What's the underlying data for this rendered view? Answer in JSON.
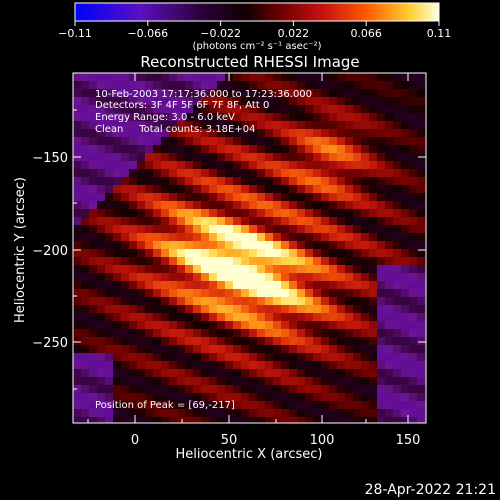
{
  "colorbar": {
    "ticks": [
      "−0.11",
      "−0.066",
      "−0.022",
      "0.022",
      "0.066",
      "0.11"
    ],
    "unit_text": "(photons cm⁻² s⁻¹ asec⁻²)",
    "colors": [
      "#0000ff",
      "#6a00a8",
      "#1a0010",
      "#4a0000",
      "#b01010",
      "#ff3c00",
      "#ff9a10",
      "#ffe040",
      "#ffffc8"
    ]
  },
  "title": "Reconstructed RHESSI Image",
  "info": {
    "line1": "10-Feb-2003 17:17:36.000 to 17:23:36.000",
    "line2": "Detectors: 3F 4F 5F 6F 7F 8F, Att 0",
    "line3": "Energy Range: 3.0 - 6.0 keV",
    "line4": "Clean     Total counts: 3.18E+04"
  },
  "peak_text": "Position of Peak = [69,-217]",
  "xaxis": {
    "label": "Heliocentric X (arcsec)",
    "ticks": [
      "0",
      "50",
      "100",
      "150"
    ]
  },
  "yaxis": {
    "label": "Heliocentric Y (arcsec)",
    "ticks": [
      "−150",
      "−200",
      "−250"
    ]
  },
  "footer_date": "28-Apr-2022 21:21"
}
